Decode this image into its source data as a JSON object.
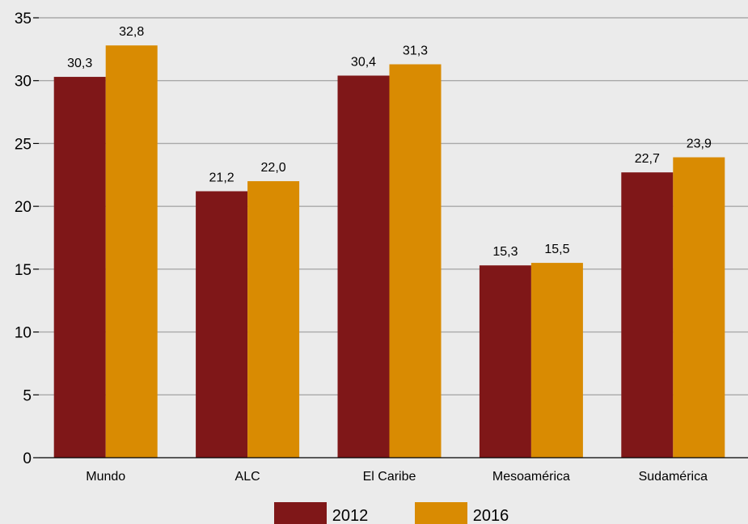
{
  "chart_data": {
    "type": "bar",
    "categories": [
      "Mundo",
      "ALC",
      "El Caribe",
      "Mesoamérica",
      "Sudamérica"
    ],
    "series": [
      {
        "name": "2012",
        "values": [
          30.3,
          21.2,
          30.4,
          15.3,
          22.7
        ],
        "labels": [
          "30,3",
          "21,2",
          "30,4",
          "15,3",
          "22,7"
        ],
        "color": "#7f1718"
      },
      {
        "name": "2016",
        "values": [
          32.8,
          22.0,
          31.3,
          15.5,
          23.9
        ],
        "labels": [
          "32,8",
          "22,0",
          "31,3",
          "15,5",
          "23,9"
        ],
        "color": "#d98b02"
      }
    ],
    "ylim": [
      0,
      35
    ],
    "yticks": [
      0,
      5,
      10,
      15,
      20,
      25,
      30,
      35
    ],
    "grid": true,
    "legend_position": "bottom",
    "title": "",
    "xlabel": "",
    "ylabel": ""
  }
}
